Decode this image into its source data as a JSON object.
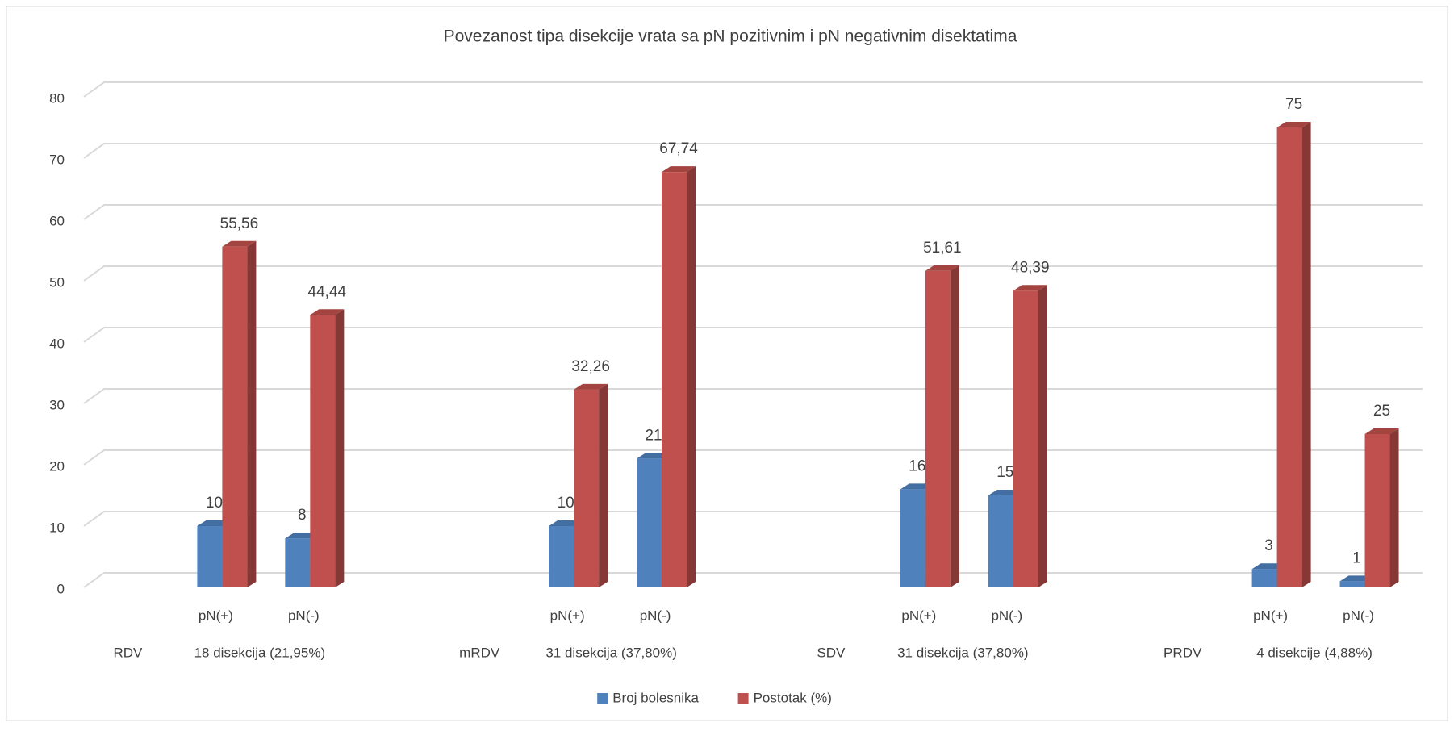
{
  "chart_data": {
    "type": "bar3d",
    "title": "Povezanost tipa disekcije vrata sa pN pozitivnim i pN negativnim disektatima",
    "groups": [
      {
        "label": "RDV",
        "subgroup": "18 disekcija (21,95%)",
        "categories": [
          "pN(+)",
          "pN(-)"
        ]
      },
      {
        "label": "mRDV",
        "subgroup": "31 disekcija (37,80%)",
        "categories": [
          "pN(+)",
          "pN(-)"
        ]
      },
      {
        "label": "SDV",
        "subgroup": "31 disekcija (37,80%)",
        "categories": [
          "pN(+)",
          "pN(-)"
        ]
      },
      {
        "label": "PRDV",
        "subgroup": "4 disekcije (4,88%)",
        "categories": [
          "pN(+)",
          "pN(-)"
        ]
      }
    ],
    "series": [
      {
        "name": "Broj bolesnika",
        "color": "#4f81bd",
        "values": [
          10,
          8,
          10,
          21,
          16,
          15,
          3,
          1
        ]
      },
      {
        "name": "Postotak (%)",
        "color": "#c0504d",
        "values": [
          55.56,
          44.44,
          32.26,
          67.74,
          51.61,
          48.39,
          75,
          25
        ],
        "value_labels": [
          "55,56",
          "44,44",
          "32,26",
          "67,74",
          "51,61",
          "48,39",
          "75",
          "25"
        ]
      }
    ],
    "ylim": [
      0,
      80
    ],
    "yticks": [
      0,
      10,
      20,
      30,
      40,
      50,
      60,
      70,
      80
    ],
    "grid": true,
    "legend": "bottom"
  }
}
